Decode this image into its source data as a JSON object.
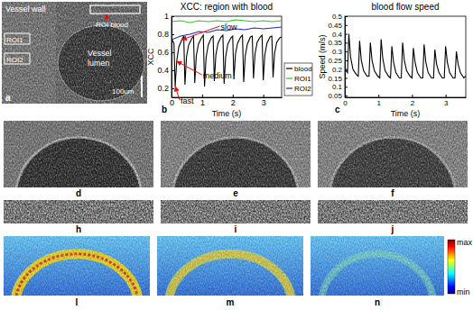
{
  "chart_data": [
    {
      "type": "line",
      "panel_label": "b",
      "title": "XCC: region with blood",
      "x_label": "Time (s)",
      "y_label": "XCC",
      "xlim": [
        0,
        3.6
      ],
      "ylim": [
        0.1,
        1
      ],
      "xticks": [
        0,
        1,
        2,
        3
      ],
      "yticks": [
        0.2,
        0.4,
        0.6,
        0.8,
        1
      ],
      "legend": "right",
      "series": [
        {
          "name": "blood",
          "color": "#000000",
          "x": [
            0,
            0.08,
            0.12,
            0.17,
            0.24,
            0.34,
            0.4,
            0.44,
            0.49,
            0.56,
            0.66,
            0.72,
            0.76,
            0.81,
            0.88,
            0.98,
            1.04,
            1.08,
            1.13,
            1.2,
            1.3,
            1.36,
            1.4,
            1.45,
            1.52,
            1.62,
            1.68,
            1.72,
            1.77,
            1.84,
            1.94,
            2.0,
            2.04,
            2.09,
            2.16,
            2.26,
            2.32,
            2.36,
            2.41,
            2.48,
            2.58,
            2.64,
            2.68,
            2.73,
            2.8,
            2.9,
            2.96,
            3.0,
            3.05,
            3.12,
            3.22,
            3.28,
            3.32,
            3.37,
            3.44,
            3.54,
            3.6
          ],
          "values": [
            0.75,
            0.7,
            0.22,
            0.5,
            0.66,
            0.74,
            0.78,
            0.24,
            0.55,
            0.68,
            0.75,
            0.78,
            0.26,
            0.56,
            0.69,
            0.76,
            0.79,
            0.22,
            0.54,
            0.68,
            0.76,
            0.78,
            0.28,
            0.57,
            0.7,
            0.77,
            0.79,
            0.25,
            0.55,
            0.69,
            0.76,
            0.78,
            0.3,
            0.58,
            0.7,
            0.77,
            0.79,
            0.27,
            0.56,
            0.69,
            0.77,
            0.78,
            0.31,
            0.58,
            0.71,
            0.77,
            0.79,
            0.29,
            0.57,
            0.7,
            0.77,
            0.78,
            0.32,
            0.59,
            0.71,
            0.76,
            0.77
          ]
        },
        {
          "name": "ROI1",
          "color": "#22cc22",
          "x": [
            0,
            0.3,
            0.6,
            0.9,
            1.2,
            1.5,
            1.8,
            2.1,
            2.4,
            2.7,
            3.0,
            3.3,
            3.6
          ],
          "values": [
            0.94,
            0.95,
            0.93,
            0.95,
            0.94,
            0.95,
            0.94,
            0.96,
            0.95,
            0.94,
            0.95,
            0.94,
            0.95
          ]
        },
        {
          "name": "ROI2",
          "color": "#2222cc",
          "x": [
            0,
            0.3,
            0.6,
            0.9,
            1.2,
            1.5,
            1.8,
            2.1,
            2.4,
            2.7,
            3.0,
            3.3,
            3.6
          ],
          "values": [
            0.74,
            0.78,
            0.8,
            0.83,
            0.82,
            0.85,
            0.84,
            0.86,
            0.85,
            0.87,
            0.86,
            0.87,
            0.88
          ]
        }
      ],
      "annotations": [
        {
          "text": "slow",
          "x": 0.34,
          "y": 0.74
        },
        {
          "text": "medium",
          "x": 0.17,
          "y": 0.5
        },
        {
          "text": "fast",
          "x": 0.12,
          "y": 0.22
        }
      ]
    },
    {
      "type": "line",
      "panel_label": "c",
      "title": "blood flow speed",
      "x_label": "Time (s)",
      "y_label": "Speed (m/s)",
      "xlim": [
        0,
        3.6
      ],
      "ylim": [
        0.04,
        0.5
      ],
      "xticks": [
        0,
        1,
        2,
        3
      ],
      "yticks": [
        0.05,
        0.1,
        0.15,
        0.2,
        0.25,
        0.3,
        0.35,
        0.4,
        0.45,
        0.5
      ],
      "series": [
        {
          "color": "#000000",
          "x": [
            0,
            0.08,
            0.12,
            0.17,
            0.24,
            0.34,
            0.4,
            0.44,
            0.49,
            0.56,
            0.66,
            0.72,
            0.76,
            0.81,
            0.88,
            0.98,
            1.04,
            1.08,
            1.13,
            1.2,
            1.3,
            1.36,
            1.4,
            1.45,
            1.52,
            1.62,
            1.68,
            1.72,
            1.77,
            1.84,
            1.94,
            2.0,
            2.04,
            2.09,
            2.16,
            2.26,
            2.32,
            2.36,
            2.41,
            2.48,
            2.58,
            2.64,
            2.68,
            2.73,
            2.8,
            2.9,
            2.96,
            3.0,
            3.05,
            3.12,
            3.22,
            3.28,
            3.32,
            3.37,
            3.44,
            3.54,
            3.6
          ],
          "values": [
            0.2,
            0.18,
            0.4,
            0.27,
            0.2,
            0.17,
            0.16,
            0.36,
            0.25,
            0.19,
            0.16,
            0.16,
            0.35,
            0.25,
            0.19,
            0.16,
            0.15,
            0.37,
            0.26,
            0.19,
            0.16,
            0.15,
            0.33,
            0.24,
            0.18,
            0.15,
            0.15,
            0.35,
            0.25,
            0.19,
            0.16,
            0.15,
            0.32,
            0.24,
            0.18,
            0.15,
            0.15,
            0.34,
            0.24,
            0.18,
            0.15,
            0.15,
            0.31,
            0.23,
            0.18,
            0.15,
            0.15,
            0.33,
            0.24,
            0.18,
            0.15,
            0.15,
            0.3,
            0.23,
            0.18,
            0.15,
            0.16
          ]
        }
      ]
    }
  ],
  "image_panels": {
    "labels": [
      "a",
      "d",
      "e",
      "f",
      "h",
      "i",
      "j",
      "l",
      "m",
      "n"
    ],
    "a_texts": {
      "vessel_wall": "Vessel wall",
      "roi1": "ROI1",
      "roi2": "ROI2",
      "roi_blood": "ROI blood",
      "lumen": [
        "Vessel",
        "lumen"
      ],
      "scale_bar": "100um"
    },
    "colorbar": {
      "max": "max",
      "min": "min"
    }
  }
}
